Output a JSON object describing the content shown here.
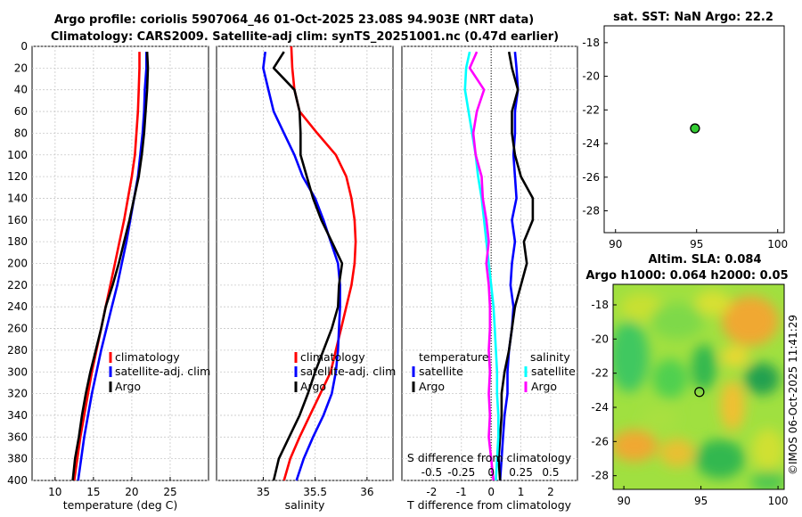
{
  "header": {
    "title_line1": "Argo profile: coriolis 5907064_46 01-Oct-2025 23.08S 94.903E (NRT data)",
    "title_line2": "Climatology: CARS2009. Satellite-adj clim: synTS_20251001.nc (0.47d earlier)"
  },
  "colors": {
    "climatology": "#ff0000",
    "satellite": "#0000ff",
    "argo": "#000000",
    "satellite_s": "#00ffff",
    "argo_s": "#ff00ff",
    "marker": "#33cc33"
  },
  "chart_data": [
    {
      "id": "temperature",
      "type": "line",
      "xlabel": "temperature (deg C)",
      "xlim": [
        7,
        30
      ],
      "xticks": [
        10,
        15,
        20,
        25
      ],
      "ylim": [
        0,
        400
      ],
      "yticks": [
        0,
        20,
        40,
        60,
        80,
        100,
        120,
        140,
        160,
        180,
        200,
        220,
        240,
        260,
        280,
        300,
        320,
        340,
        360,
        380,
        400
      ],
      "series": [
        {
          "name": "climatology",
          "color": "#ff0000",
          "points": [
            [
              21.0,
              5
            ],
            [
              21.0,
              20
            ],
            [
              20.9,
              40
            ],
            [
              20.8,
              60
            ],
            [
              20.6,
              80
            ],
            [
              20.4,
              100
            ],
            [
              20.0,
              120
            ],
            [
              19.5,
              140
            ],
            [
              19.0,
              160
            ],
            [
              18.4,
              180
            ],
            [
              17.8,
              200
            ],
            [
              17.2,
              220
            ],
            [
              16.6,
              240
            ],
            [
              16.0,
              260
            ],
            [
              15.4,
              280
            ],
            [
              14.8,
              300
            ],
            [
              14.3,
              320
            ],
            [
              13.8,
              340
            ],
            [
              13.3,
              360
            ],
            [
              12.9,
              380
            ],
            [
              12.5,
              400
            ]
          ]
        },
        {
          "name": "satellite-adj. clim",
          "color": "#0000ff",
          "points": [
            [
              21.9,
              5
            ],
            [
              21.9,
              20
            ],
            [
              21.7,
              40
            ],
            [
              21.6,
              60
            ],
            [
              21.4,
              80
            ],
            [
              21.1,
              100
            ],
            [
              20.8,
              120
            ],
            [
              20.3,
              140
            ],
            [
              19.8,
              160
            ],
            [
              19.3,
              180
            ],
            [
              18.7,
              200
            ],
            [
              18.1,
              220
            ],
            [
              17.4,
              240
            ],
            [
              16.7,
              260
            ],
            [
              16.0,
              280
            ],
            [
              15.4,
              300
            ],
            [
              14.8,
              320
            ],
            [
              14.3,
              340
            ],
            [
              13.8,
              360
            ],
            [
              13.4,
              380
            ],
            [
              13.0,
              400
            ]
          ]
        },
        {
          "name": "Argo",
          "color": "#000000",
          "points": [
            [
              22.0,
              5
            ],
            [
              22.1,
              20
            ],
            [
              22.0,
              40
            ],
            [
              21.8,
              60
            ],
            [
              21.6,
              80
            ],
            [
              21.3,
              100
            ],
            [
              20.9,
              120
            ],
            [
              20.3,
              140
            ],
            [
              19.7,
              160
            ],
            [
              19.0,
              180
            ],
            [
              18.3,
              200
            ],
            [
              17.5,
              220
            ],
            [
              16.6,
              240
            ],
            [
              16.0,
              260
            ],
            [
              15.3,
              280
            ],
            [
              14.6,
              300
            ],
            [
              14.0,
              320
            ],
            [
              13.5,
              340
            ],
            [
              13.1,
              360
            ],
            [
              12.6,
              380
            ],
            [
              12.3,
              400
            ]
          ]
        }
      ],
      "legend": [
        "climatology",
        "satellite-adj. clim",
        "Argo"
      ]
    },
    {
      "id": "salinity",
      "type": "line",
      "xlabel": "salinity",
      "xlim": [
        34.55,
        36.25
      ],
      "xticks": [
        35,
        35.5,
        36
      ],
      "xtick_labels": [
        "35",
        "35.5",
        "36"
      ],
      "ylim": [
        0,
        400
      ],
      "series": [
        {
          "name": "climatology",
          "color": "#ff0000",
          "points": [
            [
              35.27,
              0
            ],
            [
              35.28,
              20
            ],
            [
              35.3,
              40
            ],
            [
              35.35,
              60
            ],
            [
              35.52,
              80
            ],
            [
              35.7,
              100
            ],
            [
              35.8,
              120
            ],
            [
              35.85,
              140
            ],
            [
              35.88,
              160
            ],
            [
              35.89,
              180
            ],
            [
              35.88,
              200
            ],
            [
              35.85,
              220
            ],
            [
              35.8,
              240
            ],
            [
              35.75,
              260
            ],
            [
              35.7,
              280
            ],
            [
              35.65,
              300
            ],
            [
              35.55,
              320
            ],
            [
              35.45,
              340
            ],
            [
              35.35,
              360
            ],
            [
              35.26,
              380
            ],
            [
              35.2,
              400
            ]
          ]
        },
        {
          "name": "satellite-adj. clim",
          "color": "#0000ff",
          "points": [
            [
              35.02,
              5
            ],
            [
              35.0,
              20
            ],
            [
              35.05,
              40
            ],
            [
              35.1,
              60
            ],
            [
              35.2,
              80
            ],
            [
              35.3,
              100
            ],
            [
              35.38,
              120
            ],
            [
              35.5,
              140
            ],
            [
              35.58,
              160
            ],
            [
              35.65,
              180
            ],
            [
              35.72,
              200
            ],
            [
              35.74,
              220
            ],
            [
              35.74,
              240
            ],
            [
              35.73,
              260
            ],
            [
              35.72,
              280
            ],
            [
              35.7,
              300
            ],
            [
              35.66,
              320
            ],
            [
              35.58,
              340
            ],
            [
              35.48,
              360
            ],
            [
              35.39,
              380
            ],
            [
              35.32,
              400
            ]
          ]
        },
        {
          "name": "Argo",
          "color": "#000000",
          "points": [
            [
              35.2,
              5
            ],
            [
              35.1,
              20
            ],
            [
              35.3,
              40
            ],
            [
              35.35,
              60
            ],
            [
              35.36,
              80
            ],
            [
              35.36,
              100
            ],
            [
              35.42,
              120
            ],
            [
              35.48,
              140
            ],
            [
              35.56,
              160
            ],
            [
              35.66,
              180
            ],
            [
              35.76,
              200
            ],
            [
              35.73,
              220
            ],
            [
              35.72,
              240
            ],
            [
              35.66,
              260
            ],
            [
              35.58,
              280
            ],
            [
              35.5,
              300
            ],
            [
              35.43,
              320
            ],
            [
              35.35,
              340
            ],
            [
              35.25,
              360
            ],
            [
              35.15,
              380
            ],
            [
              35.1,
              400
            ]
          ]
        }
      ],
      "legend": [
        "climatology",
        "satellite-adj. clim",
        "Argo"
      ]
    },
    {
      "id": "difference",
      "type": "line",
      "xlabel": "T difference from climatology",
      "top_axis_label": "S difference from climatology",
      "xlim": [
        -3,
        2.9
      ],
      "xticks": [
        -2,
        -1,
        0,
        1,
        2
      ],
      "top_xticks": [
        -0.5,
        -0.25,
        0,
        0.25,
        0.5
      ],
      "top_xtick_labels": [
        "-0.5",
        "-0.25",
        "0",
        "0.25",
        "0.5"
      ],
      "ylim": [
        0,
        400
      ],
      "legend_left_title": "temperature",
      "legend_right_title": "salinity",
      "series": [
        {
          "name": "temperature satellite",
          "color": "#0000ff",
          "points": [
            [
              0.8,
              5
            ],
            [
              0.85,
              20
            ],
            [
              0.9,
              40
            ],
            [
              0.8,
              60
            ],
            [
              0.8,
              80
            ],
            [
              0.75,
              100
            ],
            [
              0.8,
              120
            ],
            [
              0.85,
              140
            ],
            [
              0.7,
              160
            ],
            [
              0.8,
              180
            ],
            [
              0.7,
              200
            ],
            [
              0.65,
              220
            ],
            [
              0.75,
              240
            ],
            [
              0.7,
              260
            ],
            [
              0.6,
              280
            ],
            [
              0.55,
              300
            ],
            [
              0.55,
              320
            ],
            [
              0.45,
              340
            ],
            [
              0.4,
              360
            ],
            [
              0.35,
              380
            ],
            [
              0.3,
              400
            ]
          ]
        },
        {
          "name": "temperature Argo",
          "color": "#000000",
          "points": [
            [
              0.6,
              5
            ],
            [
              0.7,
              20
            ],
            [
              0.9,
              40
            ],
            [
              0.7,
              60
            ],
            [
              0.7,
              80
            ],
            [
              0.8,
              100
            ],
            [
              1.0,
              120
            ],
            [
              1.4,
              140
            ],
            [
              1.4,
              160
            ],
            [
              1.1,
              180
            ],
            [
              1.2,
              200
            ],
            [
              1.0,
              220
            ],
            [
              0.8,
              240
            ],
            [
              0.7,
              260
            ],
            [
              0.6,
              280
            ],
            [
              0.45,
              300
            ],
            [
              0.35,
              320
            ],
            [
              0.35,
              340
            ],
            [
              0.3,
              360
            ],
            [
              0.25,
              380
            ],
            [
              0.3,
              400
            ]
          ]
        },
        {
          "name": "salinity satellite",
          "color": "#00ffff",
          "points": [
            [
              -0.18,
              5
            ],
            [
              -0.21,
              20
            ],
            [
              -0.22,
              40
            ],
            [
              -0.19,
              60
            ],
            [
              -0.16,
              80
            ],
            [
              -0.13,
              100
            ],
            [
              -0.11,
              120
            ],
            [
              -0.08,
              140
            ],
            [
              -0.06,
              160
            ],
            [
              -0.04,
              180
            ],
            [
              -0.02,
              200
            ],
            [
              0.0,
              220
            ],
            [
              0.02,
              240
            ],
            [
              0.03,
              260
            ],
            [
              0.04,
              280
            ],
            [
              0.05,
              300
            ],
            [
              0.05,
              320
            ],
            [
              0.06,
              340
            ],
            [
              0.06,
              360
            ],
            [
              0.05,
              380
            ],
            [
              0.04,
              400
            ]
          ]
        },
        {
          "name": "salinity Argo",
          "color": "#ff00ff",
          "points": [
            [
              -0.12,
              5
            ],
            [
              -0.18,
              20
            ],
            [
              -0.06,
              40
            ],
            [
              -0.12,
              60
            ],
            [
              -0.15,
              80
            ],
            [
              -0.13,
              100
            ],
            [
              -0.08,
              120
            ],
            [
              -0.07,
              140
            ],
            [
              -0.04,
              160
            ],
            [
              -0.02,
              180
            ],
            [
              -0.04,
              200
            ],
            [
              -0.02,
              220
            ],
            [
              -0.01,
              240
            ],
            [
              -0.01,
              260
            ],
            [
              -0.02,
              280
            ],
            [
              -0.01,
              300
            ],
            [
              -0.02,
              320
            ],
            [
              -0.01,
              340
            ],
            [
              -0.02,
              360
            ],
            [
              0.0,
              380
            ],
            [
              0.02,
              400
            ]
          ]
        }
      ],
      "legend_left": [
        "satellite",
        "Argo"
      ],
      "legend_right": [
        "satellite",
        "Argo"
      ]
    },
    {
      "id": "sst_map",
      "type": "scatter",
      "title": "sat. SST: NaN Argo: 22.2",
      "xlim": [
        89.3,
        100.4
      ],
      "xticks": [
        90,
        95,
        100
      ],
      "ylim": [
        -29.3,
        -17.0
      ],
      "yticks": [
        -18,
        -20,
        -22,
        -24,
        -26,
        -28
      ],
      "points": [
        {
          "lon": 94.9,
          "lat": -23.1
        }
      ]
    },
    {
      "id": "sla_map",
      "type": "heatmap",
      "title_line1": "Altim. SLA: 0.084",
      "title_line2": "Argo h1000: 0.064 h2000: 0.05",
      "xlim": [
        89.3,
        100.4
      ],
      "xticks": [
        90,
        95,
        100
      ],
      "ylim": [
        -28.8,
        -16.8
      ],
      "yticks": [
        -18,
        -20,
        -22,
        -24,
        -26,
        -28
      ],
      "points": [
        {
          "lon": 94.9,
          "lat": -23.1
        }
      ]
    }
  ],
  "footer": {
    "credit": "©IMOS 06-Oct-2025 11:41:29"
  }
}
